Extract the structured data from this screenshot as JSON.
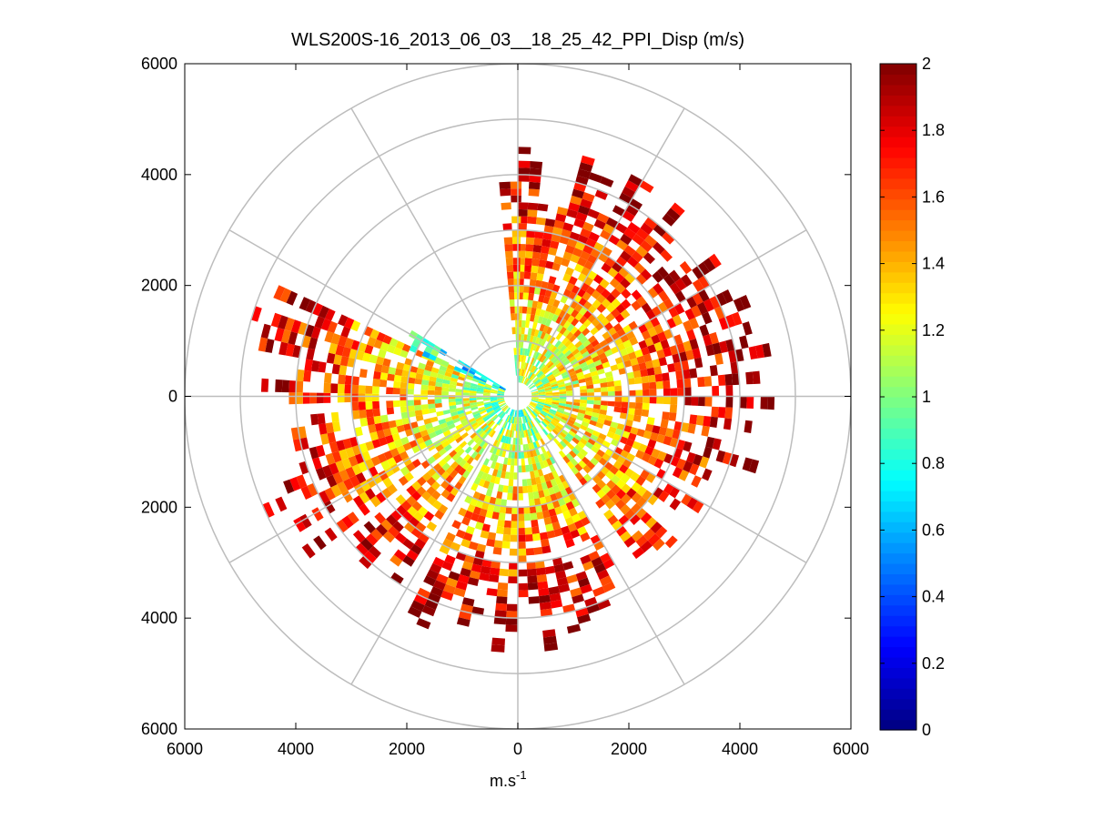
{
  "chart_data": {
    "type": "heatmap",
    "subtype": "polar-ppi",
    "title": "WLS200S-16_2013_06_03__18_25_42_PPI_Disp (m/s)",
    "xlabel_base": "m.s",
    "xlabel_exp": "-1",
    "ylabel": "",
    "xlim": [
      -6000,
      6000
    ],
    "ylim": [
      -6000,
      6000
    ],
    "x_ticks": [
      -6000,
      -4000,
      -2000,
      0,
      2000,
      4000,
      6000
    ],
    "x_tick_labels": [
      "6000",
      "4000",
      "2000",
      "0",
      "2000",
      "4000",
      "6000"
    ],
    "y_ticks": [
      6000,
      4000,
      2000,
      0,
      -2000,
      -4000,
      -6000
    ],
    "y_tick_labels": [
      "6000",
      "4000",
      "2000",
      "0",
      "2000",
      "4000",
      "6000"
    ],
    "polar_grid": {
      "rings": [
        1000,
        2000,
        3000,
        4000,
        5000,
        6000
      ],
      "spoke_angles_deg": [
        0,
        30,
        60,
        90,
        120,
        150,
        180,
        210,
        240,
        270,
        300,
        330
      ]
    },
    "colorbar": {
      "min": 0,
      "max": 2,
      "colormap": "jet",
      "ticks": [
        0,
        0.2,
        0.4,
        0.6,
        0.8,
        1,
        1.2,
        1.4,
        1.6,
        1.8,
        2
      ],
      "tick_labels": [
        "0",
        "0.2",
        "0.4",
        "0.6",
        "0.8",
        "1",
        "1.2",
        "1.4",
        "1.6",
        "1.8",
        "2"
      ]
    },
    "sectors": [
      {
        "az_from_deg": 0,
        "az_to_deg": 108,
        "r_max": 4000,
        "value_near": 1.0,
        "value_far": 1.9
      },
      {
        "az_from_deg": 108,
        "az_to_deg": 142,
        "r_max": 3400,
        "value_near": 1.0,
        "value_far": 1.7
      },
      {
        "az_from_deg": 150,
        "az_to_deg": 205,
        "r_max": 4100,
        "value_near": 0.9,
        "value_far": 1.9
      },
      {
        "az_from_deg": 212,
        "az_to_deg": 228,
        "r_max": 4200,
        "value_near": 1.0,
        "value_far": 1.9
      },
      {
        "az_from_deg": 232,
        "az_to_deg": 293,
        "r_max": 4300,
        "value_near": 0.95,
        "value_far": 1.8
      },
      {
        "az_from_deg": 293,
        "az_to_deg": 302,
        "r_max": 2300,
        "value_near": 0.6,
        "value_far": 0.9
      },
      {
        "az_from_deg": 355,
        "az_to_deg": 360,
        "r_max": 3400,
        "value_near": 1.0,
        "value_far": 1.7
      }
    ]
  },
  "colors": {
    "grid": "#bdbdbd",
    "axis": "#000000",
    "background": "#ffffff"
  }
}
